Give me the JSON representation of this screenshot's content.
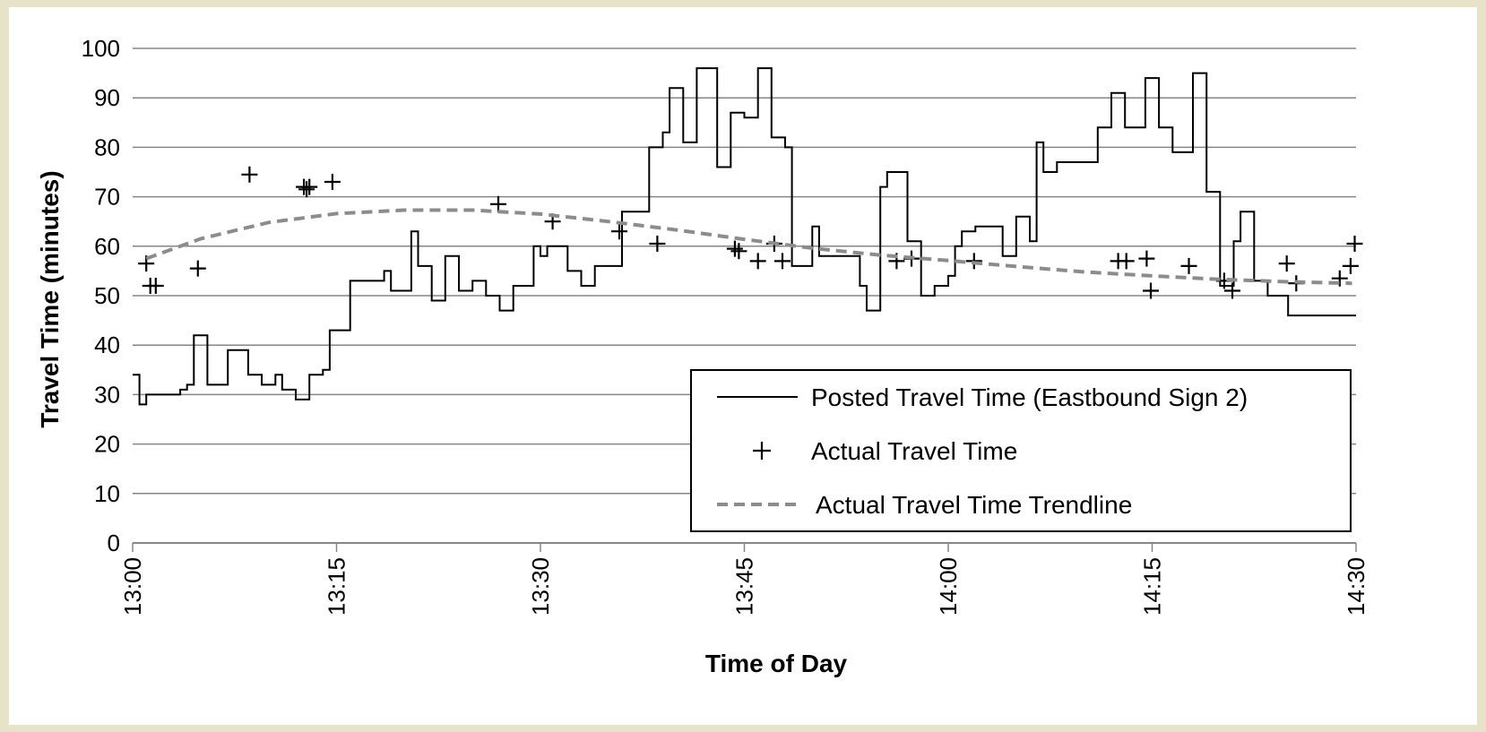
{
  "chart_data": {
    "type": "line",
    "title": "",
    "xlabel": "Time of Day",
    "ylabel": "Travel Time (minutes)",
    "ylim": [
      0,
      100
    ],
    "yticks": [
      "0",
      "10",
      "20",
      "30",
      "40",
      "50",
      "60",
      "70",
      "80",
      "90",
      "100"
    ],
    "xlim_minutes": [
      0,
      90
    ],
    "xticks": [
      "13:00",
      "13:15",
      "13:30",
      "13:45",
      "14:00",
      "14:15",
      "14:30"
    ],
    "grid": "horizontal",
    "legend_position": "lower-right",
    "series": [
      {
        "name": "Posted Travel Time (Eastbound Sign 2)",
        "style": "step",
        "color": "#000000",
        "x": [
          0,
          0.5,
          1.0,
          1.5,
          3.5,
          4.0,
          4.5,
          5.5,
          6.5,
          7.0,
          8.5,
          9.0,
          9.5,
          10.0,
          10.5,
          11.0,
          12.0,
          13.0,
          14.0,
          14.5,
          15.0,
          16.0,
          17.0,
          18.5,
          19.0,
          20.0,
          20.5,
          21.0,
          22.0,
          22.5,
          23.0,
          24.0,
          24.5,
          25.0,
          26.0,
          27.0,
          28.0,
          28.5,
          29.5,
          30.0,
          30.5,
          31.0,
          32.0,
          33.0,
          34.0,
          35.0,
          35.5,
          36.0,
          37.0,
          38.0,
          39.0,
          39.5,
          40.5,
          41.0,
          41.5,
          42.0,
          43.0,
          44.0,
          45.0,
          45.5,
          46.0,
          47.0,
          48.0,
          48.5,
          49.0,
          50.0,
          50.5,
          51.5,
          52.5,
          53.5,
          54.0,
          55.0,
          55.5,
          56.0,
          57.0,
          58.0,
          59.0,
          60.0,
          60.5,
          61.0,
          62.0,
          63.0,
          64.0,
          65.0,
          66.0,
          66.5,
          67.0,
          68.0,
          70.0,
          71.0,
          72.0,
          73.0,
          74.5,
          75.5,
          76.0,
          76.5,
          78.0,
          79.0,
          80.0,
          80.5,
          81.0,
          81.5,
          82.5,
          83.5,
          84.5,
          85.0,
          86.5,
          89.0,
          89.5,
          90.0
        ],
        "y": [
          34,
          28,
          30,
          30,
          31,
          32,
          42,
          32,
          32,
          39,
          34,
          34,
          32,
          32,
          34,
          31,
          29,
          34,
          35,
          43,
          43,
          53,
          53,
          55,
          51,
          51,
          63,
          56,
          49,
          49,
          58,
          51,
          51,
          53,
          50,
          47,
          52,
          52,
          60,
          58,
          60,
          60,
          55,
          52,
          56,
          56,
          56,
          67,
          67,
          80,
          83,
          92,
          81,
          81,
          96,
          96,
          76,
          87,
          86,
          86,
          96,
          82,
          80,
          56,
          56,
          64,
          58,
          58,
          58,
          52,
          47,
          72,
          75,
          75,
          61,
          50,
          52,
          54,
          60,
          63,
          64,
          64,
          58,
          66,
          61,
          81,
          75,
          77,
          77,
          84,
          91,
          84,
          94,
          84,
          84,
          79,
          95,
          71,
          52,
          52,
          61,
          67,
          53,
          50,
          50,
          46,
          46,
          46,
          46,
          46
        ]
      },
      {
        "name": "Actual Travel Time",
        "style": "markers",
        "marker": "+",
        "color": "#000000",
        "x": [
          1.0,
          1.3,
          1.7,
          4.8,
          8.6,
          12.6,
          12.8,
          13.0,
          14.7,
          26.9,
          30.9,
          35.8,
          38.6,
          44.3,
          44.6,
          46.0,
          47.2,
          47.8,
          56.2,
          57.3,
          61.9,
          72.5,
          73.1,
          74.6,
          74.9,
          77.7,
          80.3,
          80.9,
          84.9,
          85.6,
          88.8,
          89.6,
          89.9
        ],
        "y": [
          56.5,
          52,
          52,
          55.5,
          74.5,
          72,
          71.5,
          72,
          73,
          68.5,
          65,
          63,
          60.5,
          59.5,
          59,
          57,
          60.5,
          57,
          57,
          57.5,
          57,
          57,
          57,
          57.5,
          51,
          56,
          53,
          51,
          56.5,
          52.5,
          53.5,
          56,
          60.5
        ]
      },
      {
        "name": "Actual Travel Time Trendline",
        "style": "dashed",
        "color": "#8c8c8c",
        "x": [
          1.0,
          5.0,
          10.0,
          15.0,
          20.0,
          25.0,
          30.0,
          35.0,
          40.0,
          45.0,
          50.0,
          55.0,
          60.0,
          65.0,
          70.0,
          75.0,
          80.0,
          85.0,
          89.7
        ],
        "y": [
          57.5,
          61.5,
          64.8,
          66.6,
          67.3,
          67.3,
          66.5,
          65.0,
          63.3,
          61.4,
          59.6,
          58.2,
          57.1,
          55.9,
          54.8,
          54.0,
          53.3,
          52.8,
          52.5
        ]
      }
    ]
  }
}
